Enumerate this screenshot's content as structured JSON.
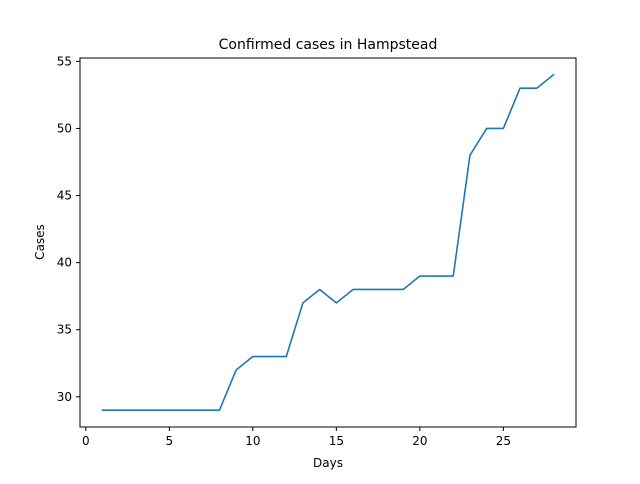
{
  "chart_data": {
    "type": "line",
    "title": "Confirmed cases in Hampstead",
    "xlabel": "Days",
    "ylabel": "Cases",
    "xlim": [
      -0.35,
      29.35
    ],
    "ylim": [
      27.75,
      55.25
    ],
    "xticks": [
      0,
      5,
      10,
      15,
      20,
      25
    ],
    "yticks": [
      30,
      35,
      40,
      45,
      50,
      55
    ],
    "grid": false,
    "legend": "none",
    "series": [
      {
        "color": "#1f77b4",
        "x": [
          1,
          2,
          3,
          4,
          5,
          6,
          7,
          8,
          9,
          10,
          11,
          12,
          13,
          14,
          15,
          16,
          17,
          18,
          19,
          20,
          21,
          22,
          23,
          24,
          25,
          26,
          27,
          28
        ],
        "y": [
          29,
          29,
          29,
          29,
          29,
          29,
          29,
          29,
          32,
          33,
          33,
          33,
          37,
          38,
          37,
          38,
          38,
          38,
          38,
          39,
          39,
          39,
          48,
          50,
          50,
          53,
          53,
          54
        ]
      }
    ]
  }
}
